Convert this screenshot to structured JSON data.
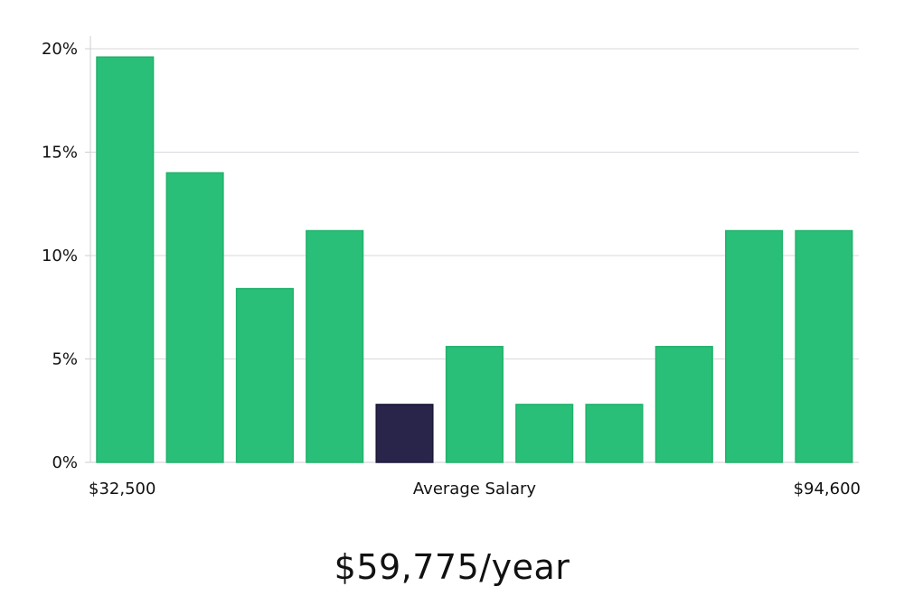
{
  "headline": "$59,775/year",
  "colors": {
    "bar": "#2abf78",
    "bar_border": "#20b26b",
    "highlight": "#29244a",
    "grid": "#d9d9de",
    "axis": "#cfcfd4"
  },
  "chart_data": {
    "type": "bar",
    "title": "",
    "xlabel": "Average Salary",
    "ylabel": "",
    "x_start_label": "$32,500",
    "x_end_label": "$94,600",
    "ylim": [
      0,
      20
    ],
    "yticks": [
      0,
      5,
      10,
      15,
      20
    ],
    "ytick_labels": [
      "0%",
      "5%",
      "10%",
      "15%",
      "20%"
    ],
    "values": [
      19.6,
      14.0,
      8.4,
      11.2,
      2.8,
      5.6,
      2.8,
      2.8,
      5.6,
      11.2,
      11.2
    ],
    "highlight_index": 4,
    "grid": true,
    "legend": "none"
  }
}
